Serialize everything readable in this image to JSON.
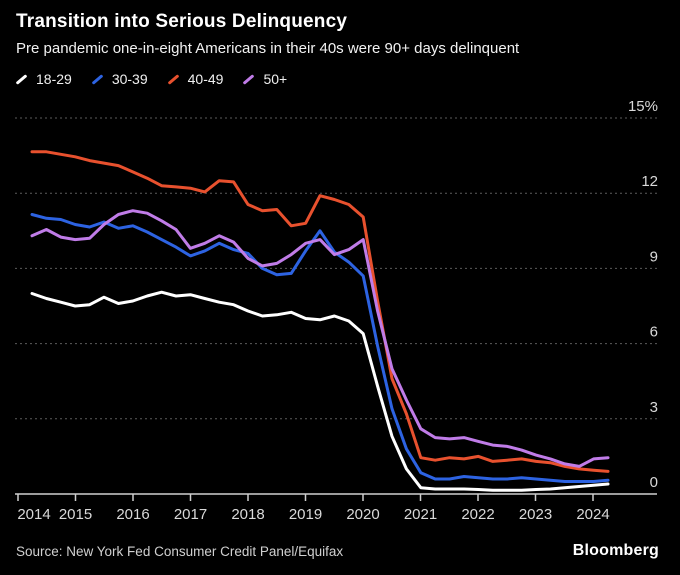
{
  "header": {
    "title": "Transition into Serious Delinquency",
    "subtitle": "Pre pandemic one-in-eight Americans in their 40s were 90+ days delinquent"
  },
  "legend": [
    {
      "label": "18-29",
      "color": "#ffffff"
    },
    {
      "label": "30-39",
      "color": "#2d63e2"
    },
    {
      "label": "40-49",
      "color": "#e8512e"
    },
    {
      "label": "50+",
      "color": "#c07ce8"
    }
  ],
  "source": "Source: New York Fed Consumer Credit Panel/Equifax",
  "brand": "Bloomberg",
  "colors": {
    "background": "#000000",
    "grid": "#5c5c5c",
    "axis": "#cfcfcf",
    "tick_text": "#d9d9d9"
  },
  "chart_data": {
    "type": "line",
    "title": "Transition into Serious Delinquency",
    "subtitle": "Pre pandemic one-in-eight Americans in their 40s were 90+ days delinquent",
    "x_unit": "quarter",
    "x_range": [
      "2014-Q2",
      "2024-Q2"
    ],
    "x_tick_labels": [
      "2014",
      "2015",
      "2016",
      "2017",
      "2018",
      "2019",
      "2020",
      "2021",
      "2022",
      "2023",
      "2024"
    ],
    "y_ticks": [
      0,
      3,
      6,
      9,
      12,
      15
    ],
    "y_tick_labels": [
      "0",
      "3",
      "6",
      "9",
      "12",
      "15%"
    ],
    "ylim": [
      0,
      15
    ],
    "unit": "percent",
    "grid": "horizontal-dashed",
    "legend_position": "top-left",
    "x_quarters": [
      "2014-Q2",
      "2014-Q3",
      "2014-Q4",
      "2015-Q1",
      "2015-Q2",
      "2015-Q3",
      "2015-Q4",
      "2016-Q1",
      "2016-Q2",
      "2016-Q3",
      "2016-Q4",
      "2017-Q1",
      "2017-Q2",
      "2017-Q3",
      "2017-Q4",
      "2018-Q1",
      "2018-Q2",
      "2018-Q3",
      "2018-Q4",
      "2019-Q1",
      "2019-Q2",
      "2019-Q3",
      "2019-Q4",
      "2020-Q1",
      "2020-Q2",
      "2020-Q3",
      "2020-Q4",
      "2021-Q1",
      "2021-Q2",
      "2021-Q3",
      "2021-Q4",
      "2022-Q1",
      "2022-Q2",
      "2022-Q3",
      "2022-Q4",
      "2023-Q1",
      "2023-Q2",
      "2023-Q3",
      "2023-Q4",
      "2024-Q1",
      "2024-Q2"
    ],
    "series": [
      {
        "name": "18-29",
        "color": "#ffffff",
        "values": [
          8.0,
          7.8,
          7.65,
          7.5,
          7.55,
          7.85,
          7.6,
          7.7,
          7.9,
          8.05,
          7.9,
          7.95,
          7.8,
          7.65,
          7.55,
          7.3,
          7.1,
          7.15,
          7.25,
          7.0,
          6.95,
          7.1,
          6.9,
          6.4,
          4.3,
          2.3,
          1.0,
          0.25,
          0.2,
          0.2,
          0.2,
          0.18,
          0.15,
          0.15,
          0.15,
          0.18,
          0.2,
          0.25,
          0.3,
          0.35,
          0.4
        ]
      },
      {
        "name": "30-39",
        "color": "#2d63e2",
        "values": [
          11.15,
          11.0,
          10.95,
          10.75,
          10.65,
          10.85,
          10.6,
          10.7,
          10.45,
          10.15,
          9.85,
          9.5,
          9.7,
          10.0,
          9.75,
          9.6,
          9.0,
          8.75,
          8.8,
          9.7,
          10.5,
          9.65,
          9.25,
          8.7,
          5.9,
          3.4,
          1.8,
          0.85,
          0.6,
          0.6,
          0.7,
          0.65,
          0.6,
          0.6,
          0.65,
          0.6,
          0.55,
          0.5,
          0.5,
          0.5,
          0.55
        ]
      },
      {
        "name": "40-49",
        "color": "#e8512e",
        "values": [
          13.65,
          13.65,
          13.55,
          13.45,
          13.3,
          13.2,
          13.1,
          12.85,
          12.6,
          12.3,
          12.25,
          12.2,
          12.05,
          12.5,
          12.45,
          11.55,
          11.3,
          11.35,
          10.7,
          10.8,
          11.9,
          11.75,
          11.55,
          11.05,
          7.7,
          4.6,
          3.2,
          1.45,
          1.35,
          1.45,
          1.4,
          1.5,
          1.3,
          1.35,
          1.4,
          1.3,
          1.25,
          1.1,
          1.0,
          0.95,
          0.9
        ]
      },
      {
        "name": "50+",
        "color": "#c07ce8",
        "values": [
          10.3,
          10.55,
          10.25,
          10.15,
          10.2,
          10.75,
          11.15,
          11.3,
          11.2,
          10.9,
          10.55,
          9.8,
          10.0,
          10.3,
          10.05,
          9.4,
          9.1,
          9.2,
          9.55,
          10.0,
          10.15,
          9.55,
          9.75,
          10.15,
          7.3,
          5.0,
          3.75,
          2.6,
          2.25,
          2.2,
          2.25,
          2.1,
          1.95,
          1.9,
          1.75,
          1.55,
          1.4,
          1.2,
          1.1,
          1.4,
          1.45
        ]
      }
    ]
  }
}
